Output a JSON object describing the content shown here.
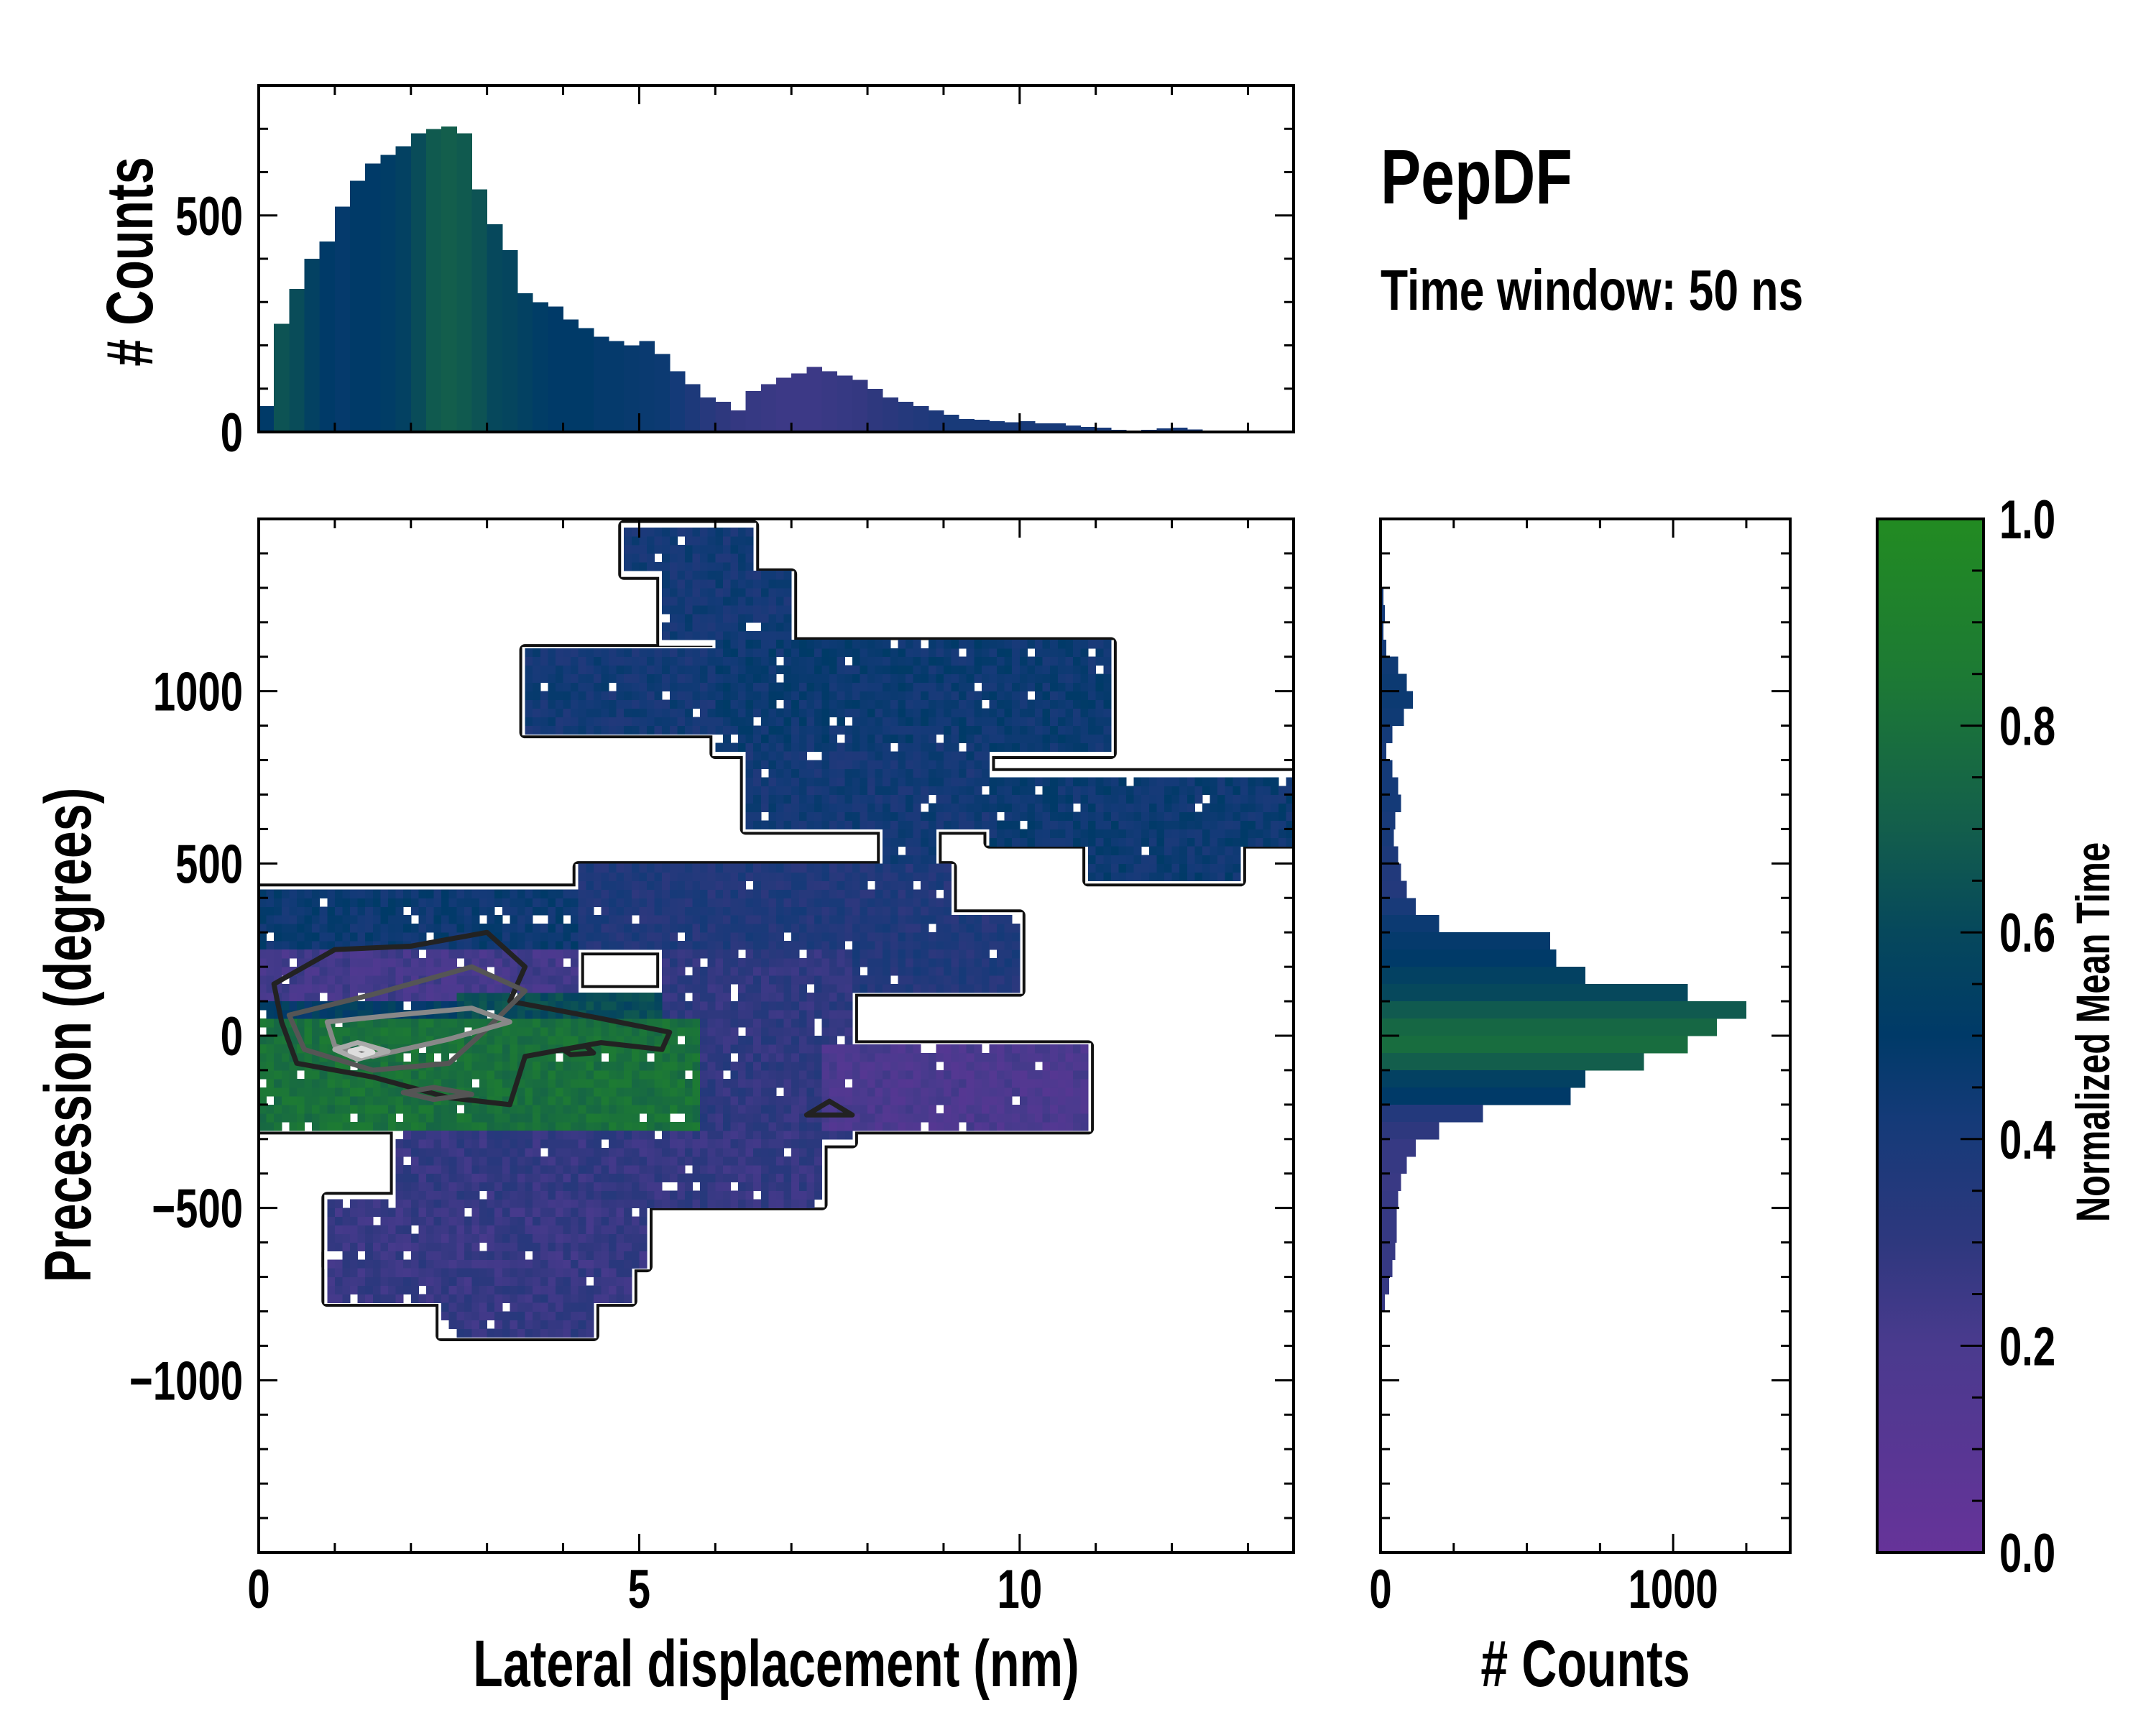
{
  "title": "PepDF",
  "subtitle": "Time window: 50 ns",
  "chart_data": [
    {
      "type": "heatmap",
      "name": "joint-distribution",
      "xlabel": "Lateral displacement (nm)",
      "ylabel": "Precession (degrees)",
      "xlim": [
        0,
        13.6
      ],
      "ylim": [
        -1500,
        1500
      ],
      "xticks": [
        0,
        5,
        10
      ],
      "xtick_labels": [
        "0",
        "5",
        "10"
      ],
      "yticks": [
        -1000,
        -500,
        0,
        500,
        1000
      ],
      "ytick_labels": [
        "−1000",
        "−500",
        "0",
        "500",
        "1000"
      ],
      "cell_size": [
        0.1,
        25
      ],
      "colored_by": "Normalized Mean Time",
      "regions": [
        {
          "x": [
            4.8,
            6.5
          ],
          "y": [
            1340,
            1480
          ],
          "value": 0.42
        },
        {
          "x": [
            5.3,
            7.0
          ],
          "y": [
            1140,
            1340
          ],
          "value": 0.42
        },
        {
          "x": [
            3.5,
            6.0
          ],
          "y": [
            880,
            1120
          ],
          "value": 0.42
        },
        {
          "x": [
            6.0,
            11.2
          ],
          "y": [
            820,
            1140
          ],
          "value": 0.45
        },
        {
          "x": [
            6.4,
            9.6
          ],
          "y": [
            600,
            840
          ],
          "value": 0.42
        },
        {
          "x": [
            9.6,
            13.6
          ],
          "y": [
            560,
            760
          ],
          "value": 0.45
        },
        {
          "x": [
            10.9,
            12.9
          ],
          "y": [
            450,
            600
          ],
          "value": 0.45
        },
        {
          "x": [
            8.2,
            8.9
          ],
          "y": [
            370,
            680
          ],
          "value": 0.42
        },
        {
          "x": [
            0.0,
            5.3
          ],
          "y": [
            250,
            425
          ],
          "value": 0.45
        },
        {
          "x": [
            4.2,
            9.1
          ],
          "y": [
            250,
            490
          ],
          "value": 0.36
        },
        {
          "x": [
            6.7,
            10.0
          ],
          "y": [
            130,
            350
          ],
          "value": 0.36
        },
        {
          "x": [
            0.0,
            4.2
          ],
          "y": [
            110,
            250
          ],
          "value": 0.22
        },
        {
          "x": [
            5.3,
            7.8
          ],
          "y": [
            -310,
            250
          ],
          "value": 0.3
        },
        {
          "x": [
            2.6,
            5.3
          ],
          "y": [
            -70,
            130
          ],
          "value": 0.62
        },
        {
          "x": [
            0.0,
            2.6
          ],
          "y": [
            -30,
            110
          ],
          "value": 0.52
        },
        {
          "x": [
            0.0,
            5.8
          ],
          "y": [
            -270,
            50
          ],
          "value": 0.8
        },
        {
          "x": [
            7.4,
            10.9
          ],
          "y": [
            -270,
            -30
          ],
          "value": 0.18
        },
        {
          "x": [
            1.8,
            7.4
          ],
          "y": [
            -490,
            -270
          ],
          "value": 0.28
        },
        {
          "x": [
            0.9,
            5.1
          ],
          "y": [
            -670,
            -470
          ],
          "value": 0.27
        },
        {
          "x": [
            0.9,
            4.9
          ],
          "y": [
            -770,
            -630
          ],
          "value": 0.27
        },
        {
          "x": [
            2.4,
            4.4
          ],
          "y": [
            -870,
            -750
          ],
          "value": 0.28
        }
      ],
      "contours": [
        {
          "color": "#222222",
          "points": [
            [
              0.2,
              150
            ],
            [
              1,
              250
            ],
            [
              2,
              260
            ],
            [
              3,
              300
            ],
            [
              3.5,
              200
            ],
            [
              3.3,
              100
            ],
            [
              4.5,
              50
            ],
            [
              5.4,
              10
            ],
            [
              5.3,
              -40
            ],
            [
              4.5,
              -20
            ],
            [
              3.5,
              -60
            ],
            [
              3.3,
              -200
            ],
            [
              2.5,
              -180
            ],
            [
              1.5,
              -120
            ],
            [
              0.5,
              -80
            ],
            [
              0.3,
              40
            ]
          ]
        },
        {
          "color": "#555555",
          "points": [
            [
              0.4,
              60
            ],
            [
              1.5,
              120
            ],
            [
              2.8,
              200
            ],
            [
              3.5,
              130
            ],
            [
              3,
              20
            ],
            [
              2.5,
              -80
            ],
            [
              1.5,
              -100
            ],
            [
              0.6,
              -40
            ]
          ]
        },
        {
          "color": "#888888",
          "points": [
            [
              0.9,
              40
            ],
            [
              1.8,
              60
            ],
            [
              2.8,
              80
            ],
            [
              3.3,
              40
            ],
            [
              2.5,
              -10
            ],
            [
              1.5,
              -60
            ],
            [
              1,
              -30
            ]
          ]
        },
        {
          "color": "#aaaaaa",
          "points": [
            [
              1.0,
              -40
            ],
            [
              1.3,
              -20
            ],
            [
              1.7,
              -45
            ],
            [
              1.3,
              -68
            ]
          ]
        },
        {
          "color": "#dddddd",
          "points": [
            [
              1.2,
              -45
            ],
            [
              1.35,
              -36
            ],
            [
              1.5,
              -48
            ],
            [
              1.35,
              -58
            ]
          ]
        },
        {
          "color": "#555555",
          "points": [
            [
              1.9,
              -165
            ],
            [
              2.3,
              -150
            ],
            [
              2.8,
              -170
            ],
            [
              2.3,
              -185
            ]
          ]
        },
        {
          "color": "#222222",
          "points": [
            [
              7.2,
              -230
            ],
            [
              7.5,
              -190
            ],
            [
              7.8,
              -230
            ]
          ]
        },
        {
          "color": "#222222",
          "points": [
            [
              4.0,
              -40
            ],
            [
              4.3,
              -30
            ],
            [
              4.4,
              -50
            ],
            [
              4.1,
              -55
            ]
          ]
        }
      ]
    },
    {
      "type": "bar",
      "name": "top-marginal-histogram",
      "orientation": "vertical",
      "ylabel": "# Counts",
      "ylim": [
        0,
        800
      ],
      "yticks": [
        0,
        500
      ],
      "ytick_labels": [
        "0",
        "500"
      ],
      "bin_start": 0,
      "bin_width": 0.2,
      "values": [
        60,
        250,
        330,
        400,
        440,
        520,
        580,
        620,
        640,
        660,
        690,
        700,
        705,
        690,
        560,
        480,
        420,
        320,
        300,
        290,
        260,
        240,
        220,
        210,
        200,
        210,
        180,
        140,
        110,
        80,
        70,
        50,
        95,
        110,
        125,
        135,
        150,
        140,
        130,
        120,
        100,
        80,
        70,
        60,
        50,
        40,
        30,
        28,
        25,
        22,
        25,
        20,
        20,
        15,
        12,
        10,
        5,
        3,
        5,
        8,
        10,
        6,
        3,
        2,
        3,
        3,
        1,
        0
      ],
      "color_values": [
        0.5,
        0.65,
        0.62,
        0.55,
        0.5,
        0.48,
        0.5,
        0.5,
        0.52,
        0.55,
        0.62,
        0.68,
        0.7,
        0.68,
        0.65,
        0.6,
        0.58,
        0.55,
        0.52,
        0.5,
        0.5,
        0.5,
        0.48,
        0.48,
        0.47,
        0.46,
        0.45,
        0.42,
        0.38,
        0.33,
        0.3,
        0.28,
        0.27,
        0.26,
        0.25,
        0.25,
        0.25,
        0.26,
        0.27,
        0.28,
        0.3,
        0.32,
        0.34,
        0.36,
        0.38,
        0.4,
        0.4,
        0.4,
        0.4,
        0.4,
        0.4,
        0.4,
        0.4,
        0.4,
        0.4,
        0.4,
        0.4,
        0.4,
        0.4,
        0.4,
        0.4,
        0.4,
        0.4,
        0.4,
        0.4,
        0.4,
        0.4,
        0.4
      ]
    },
    {
      "type": "bar",
      "name": "right-marginal-histogram",
      "orientation": "horizontal",
      "xlabel": "# Counts",
      "xlim": [
        0,
        1400
      ],
      "xticks": [
        0,
        1000
      ],
      "xtick_labels": [
        "0",
        "1000"
      ],
      "bin_width": 50,
      "bin_centers": [
        1375,
        1325,
        1275,
        1225,
        1175,
        1125,
        1075,
        1025,
        975,
        925,
        875,
        825,
        775,
        725,
        675,
        625,
        575,
        525,
        475,
        425,
        375,
        325,
        275,
        225,
        175,
        125,
        75,
        25,
        -25,
        -75,
        -125,
        -175,
        -225,
        -275,
        -325,
        -375,
        -425,
        -475,
        -525,
        -575,
        -625,
        -675,
        -725,
        -775,
        -825
      ],
      "values": [
        5,
        5,
        10,
        15,
        10,
        20,
        60,
        90,
        110,
        80,
        40,
        20,
        40,
        60,
        70,
        50,
        45,
        60,
        70,
        90,
        120,
        200,
        580,
        600,
        700,
        1050,
        1250,
        1150,
        1050,
        900,
        700,
        650,
        350,
        200,
        120,
        90,
        70,
        60,
        55,
        55,
        50,
        40,
        30,
        15,
        5
      ],
      "color_values": [
        0.4,
        0.4,
        0.42,
        0.42,
        0.42,
        0.42,
        0.44,
        0.45,
        0.45,
        0.44,
        0.42,
        0.4,
        0.42,
        0.42,
        0.42,
        0.4,
        0.4,
        0.38,
        0.36,
        0.35,
        0.4,
        0.45,
        0.48,
        0.5,
        0.55,
        0.6,
        0.68,
        0.75,
        0.78,
        0.7,
        0.55,
        0.5,
        0.35,
        0.3,
        0.27,
        0.27,
        0.26,
        0.27,
        0.27,
        0.27,
        0.27,
        0.27,
        0.27,
        0.27,
        0.27
      ]
    },
    {
      "type": "colorbar",
      "name": "colorbar",
      "label": "Normalized Mean Time",
      "range": [
        0,
        1
      ],
      "ticks": [
        0,
        0.2,
        0.4,
        0.6,
        0.8,
        1.0
      ],
      "tick_labels": [
        "0.0",
        "0.2",
        "0.4",
        "0.6",
        "0.8",
        "1.0"
      ],
      "colormap": [
        [
          0.0,
          "#663399"
        ],
        [
          0.2,
          "#4a3a8e"
        ],
        [
          0.3,
          "#2e387e"
        ],
        [
          0.42,
          "#143a78"
        ],
        [
          0.5,
          "#003a68"
        ],
        [
          0.6,
          "#06485c"
        ],
        [
          0.7,
          "#135e4c"
        ],
        [
          0.85,
          "#1d7a34"
        ],
        [
          1.0,
          "#228b22"
        ]
      ]
    }
  ]
}
